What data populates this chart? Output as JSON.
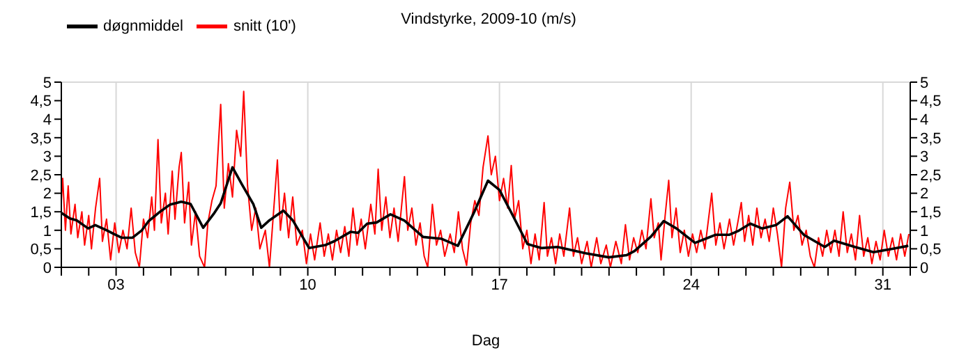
{
  "chart_data": {
    "type": "line",
    "title": "Vindstyrke, 2009-10 (m/s)",
    "xlabel": "Dag",
    "xlim": [
      1,
      32
    ],
    "xticks": [
      {
        "value": 1,
        "label": null
      },
      {
        "value": 2,
        "label": null
      },
      {
        "value": 3,
        "label": "03"
      },
      {
        "value": 4,
        "label": null
      },
      {
        "value": 5,
        "label": null
      },
      {
        "value": 6,
        "label": null
      },
      {
        "value": 7,
        "label": null
      },
      {
        "value": 8,
        "label": null
      },
      {
        "value": 9,
        "label": null
      },
      {
        "value": 10,
        "label": "10"
      },
      {
        "value": 11,
        "label": null
      },
      {
        "value": 12,
        "label": null
      },
      {
        "value": 13,
        "label": null
      },
      {
        "value": 14,
        "label": null
      },
      {
        "value": 15,
        "label": null
      },
      {
        "value": 16,
        "label": null
      },
      {
        "value": 17,
        "label": "17"
      },
      {
        "value": 18,
        "label": null
      },
      {
        "value": 19,
        "label": null
      },
      {
        "value": 20,
        "label": null
      },
      {
        "value": 21,
        "label": null
      },
      {
        "value": 22,
        "label": null
      },
      {
        "value": 23,
        "label": null
      },
      {
        "value": 24,
        "label": "24"
      },
      {
        "value": 25,
        "label": null
      },
      {
        "value": 26,
        "label": null
      },
      {
        "value": 27,
        "label": null
      },
      {
        "value": 28,
        "label": null
      },
      {
        "value": 29,
        "label": null
      },
      {
        "value": 30,
        "label": null
      },
      {
        "value": 31,
        "label": "31"
      },
      {
        "value": 32,
        "label": null
      }
    ],
    "ylim": [
      0,
      5
    ],
    "yticks": [
      0,
      {
        "value": 0.5,
        "label": "0,5"
      },
      1,
      {
        "value": 1.5,
        "label": "1,5"
      },
      2,
      {
        "value": 2.5,
        "label": "2,5"
      },
      3,
      {
        "value": 3.5,
        "label": "3,5"
      },
      4,
      {
        "value": 4.5,
        "label": "4,5"
      },
      5
    ],
    "y2lim": [
      0,
      5
    ],
    "y2ticks": [
      0,
      {
        "value": 0.5,
        "label": "0,5"
      },
      1,
      {
        "value": 1.5,
        "label": "1,5"
      },
      2,
      {
        "value": 2.5,
        "label": "2,5"
      },
      3,
      {
        "value": 3.5,
        "label": "3,5"
      },
      4,
      {
        "value": 4.5,
        "label": "4,5"
      },
      5
    ],
    "grid": true,
    "legend": "top left",
    "series": [
      {
        "name": "snitt (10')",
        "color": "#ff0000",
        "x": [
          1.0,
          1.05,
          1.15,
          1.25,
          1.35,
          1.5,
          1.6,
          1.75,
          1.85,
          2.0,
          2.1,
          2.25,
          2.4,
          2.5,
          2.65,
          2.8,
          2.95,
          3.1,
          3.25,
          3.4,
          3.55,
          3.7,
          3.85,
          4.0,
          4.15,
          4.3,
          4.4,
          4.53,
          4.65,
          4.8,
          4.9,
          5.05,
          5.15,
          5.3,
          5.38,
          5.5,
          5.65,
          5.75,
          5.9,
          6.05,
          6.23,
          6.35,
          6.5,
          6.65,
          6.82,
          6.95,
          7.1,
          7.25,
          7.4,
          7.55,
          7.66,
          7.8,
          7.95,
          8.1,
          8.25,
          8.45,
          8.6,
          8.75,
          8.89,
          9.0,
          9.15,
          9.3,
          9.45,
          9.6,
          9.8,
          9.95,
          10.1,
          10.25,
          10.45,
          10.6,
          10.75,
          10.9,
          11.05,
          11.2,
          11.35,
          11.5,
          11.65,
          11.8,
          11.95,
          12.1,
          12.3,
          12.45,
          12.57,
          12.7,
          12.85,
          13.0,
          13.15,
          13.3,
          13.53,
          13.65,
          13.8,
          13.95,
          14.1,
          14.25,
          14.38,
          14.55,
          14.7,
          14.85,
          15.0,
          15.2,
          15.35,
          15.5,
          15.65,
          15.8,
          15.95,
          16.1,
          16.25,
          16.4,
          16.58,
          16.7,
          16.85,
          17.0,
          17.15,
          17.3,
          17.43,
          17.55,
          17.7,
          17.85,
          18.0,
          18.15,
          18.3,
          18.45,
          18.63,
          18.75,
          18.9,
          19.05,
          19.2,
          19.35,
          19.56,
          19.7,
          19.85,
          20.0,
          20.2,
          20.35,
          20.55,
          20.7,
          20.9,
          21.05,
          21.25,
          21.45,
          21.6,
          21.75,
          21.9,
          22.05,
          22.2,
          22.35,
          22.53,
          22.65,
          22.8,
          22.9,
          23.05,
          23.18,
          23.3,
          23.45,
          23.6,
          23.75,
          23.9,
          24.05,
          24.2,
          24.35,
          24.5,
          24.75,
          24.9,
          25.05,
          25.2,
          25.4,
          25.55,
          25.7,
          25.83,
          25.95,
          26.1,
          26.25,
          26.4,
          26.55,
          26.7,
          26.85,
          27.0,
          27.15,
          27.3,
          27.45,
          27.6,
          27.75,
          27.9,
          28.05,
          28.2,
          28.35,
          28.5,
          28.65,
          28.8,
          28.95,
          29.1,
          29.25,
          29.4,
          29.55,
          29.7,
          29.85,
          30.0,
          30.15,
          30.3,
          30.45,
          30.6,
          30.75,
          30.9,
          31.05,
          31.2,
          31.35,
          31.5,
          31.65,
          31.8,
          31.95
        ],
        "values": [
          1.8,
          2.4,
          1.0,
          2.2,
          0.9,
          1.7,
          0.8,
          1.5,
          0.6,
          1.4,
          0.5,
          1.6,
          2.4,
          0.7,
          1.3,
          0.2,
          1.2,
          0.4,
          1.0,
          0.5,
          1.6,
          0.4,
          0.0,
          1.3,
          0.8,
          1.9,
          1.0,
          3.45,
          1.2,
          2.0,
          0.9,
          2.6,
          1.3,
          2.7,
          3.1,
          1.2,
          2.3,
          0.6,
          1.5,
          0.3,
          0.0,
          1.2,
          1.8,
          2.2,
          4.4,
          1.6,
          2.8,
          1.9,
          3.7,
          3.0,
          4.75,
          2.2,
          1.0,
          1.6,
          0.5,
          1.0,
          0.0,
          1.5,
          2.9,
          1.0,
          2.0,
          0.8,
          1.9,
          0.6,
          1.0,
          0.1,
          0.9,
          0.2,
          1.2,
          0.3,
          0.9,
          0.2,
          1.0,
          0.4,
          1.1,
          0.3,
          1.6,
          0.6,
          1.3,
          0.5,
          1.7,
          0.9,
          2.65,
          1.0,
          1.9,
          0.8,
          1.6,
          0.7,
          2.45,
          1.0,
          1.6,
          0.6,
          1.2,
          0.3,
          0.0,
          1.7,
          0.6,
          1.0,
          0.3,
          0.9,
          0.4,
          1.5,
          0.5,
          0.05,
          1.2,
          1.8,
          1.4,
          2.7,
          3.55,
          2.5,
          3.0,
          1.8,
          2.4,
          1.6,
          2.75,
          1.3,
          1.8,
          0.5,
          1.0,
          0.1,
          0.9,
          0.2,
          1.75,
          0.3,
          0.8,
          0.1,
          0.9,
          0.3,
          1.6,
          0.3,
          0.8,
          0.1,
          0.7,
          0.0,
          0.8,
          0.1,
          0.6,
          0.0,
          0.7,
          0.1,
          1.15,
          0.2,
          0.8,
          0.4,
          1.0,
          0.5,
          1.85,
          0.8,
          1.2,
          0.2,
          1.4,
          2.35,
          0.8,
          1.6,
          0.4,
          1.0,
          0.3,
          0.9,
          0.4,
          1.0,
          0.5,
          2.0,
          0.6,
          1.2,
          0.5,
          1.3,
          0.6,
          1.2,
          1.75,
          0.7,
          1.4,
          0.6,
          1.6,
          0.8,
          1.3,
          0.7,
          1.6,
          0.9,
          0.0,
          1.6,
          2.3,
          1.0,
          1.4,
          0.6,
          1.0,
          0.3,
          0.0,
          0.8,
          0.3,
          1.0,
          0.4,
          1.0,
          0.3,
          1.5,
          0.4,
          0.9,
          0.2,
          1.4,
          0.3,
          0.8,
          0.1,
          0.7,
          0.2,
          1.0,
          0.3,
          0.8,
          0.2,
          0.9,
          0.3,
          0.9
        ]
      },
      {
        "name": "døgnmiddel",
        "color": "#000000",
        "x": [
          1.0,
          1.31,
          1.56,
          1.98,
          2.24,
          2.66,
          2.92,
          3.2,
          3.6,
          3.94,
          4.19,
          4.62,
          4.96,
          5.38,
          5.72,
          6.18,
          6.56,
          6.82,
          7.25,
          7.58,
          8.01,
          8.3,
          8.6,
          9.11,
          9.45,
          10.05,
          10.64,
          10.98,
          11.57,
          11.83,
          12.17,
          12.51,
          13.02,
          13.53,
          14.21,
          14.89,
          15.48,
          16.07,
          16.58,
          17.0,
          17.43,
          18.02,
          18.53,
          19.12,
          20.14,
          20.99,
          21.65,
          21.93,
          22.53,
          23.0,
          23.46,
          24.14,
          24.9,
          25.4,
          25.74,
          26.16,
          26.59,
          27.1,
          27.52,
          28.11,
          28.88,
          29.22,
          29.98,
          30.66,
          31.34,
          31.93
        ],
        "values": [
          1.47,
          1.32,
          1.27,
          1.05,
          1.14,
          1.0,
          0.9,
          0.8,
          0.8,
          1.0,
          1.25,
          1.51,
          1.69,
          1.77,
          1.71,
          1.07,
          1.44,
          1.73,
          2.7,
          2.26,
          1.71,
          1.07,
          1.27,
          1.53,
          1.27,
          0.52,
          0.6,
          0.71,
          0.96,
          0.93,
          1.18,
          1.21,
          1.43,
          1.26,
          0.82,
          0.77,
          0.58,
          1.48,
          2.34,
          2.09,
          1.48,
          0.63,
          0.52,
          0.55,
          0.38,
          0.27,
          0.33,
          0.44,
          0.83,
          1.25,
          1.05,
          0.66,
          0.88,
          0.88,
          0.99,
          1.18,
          1.05,
          1.14,
          1.38,
          0.88,
          0.55,
          0.72,
          0.55,
          0.41,
          0.5,
          0.58
        ]
      }
    ]
  }
}
